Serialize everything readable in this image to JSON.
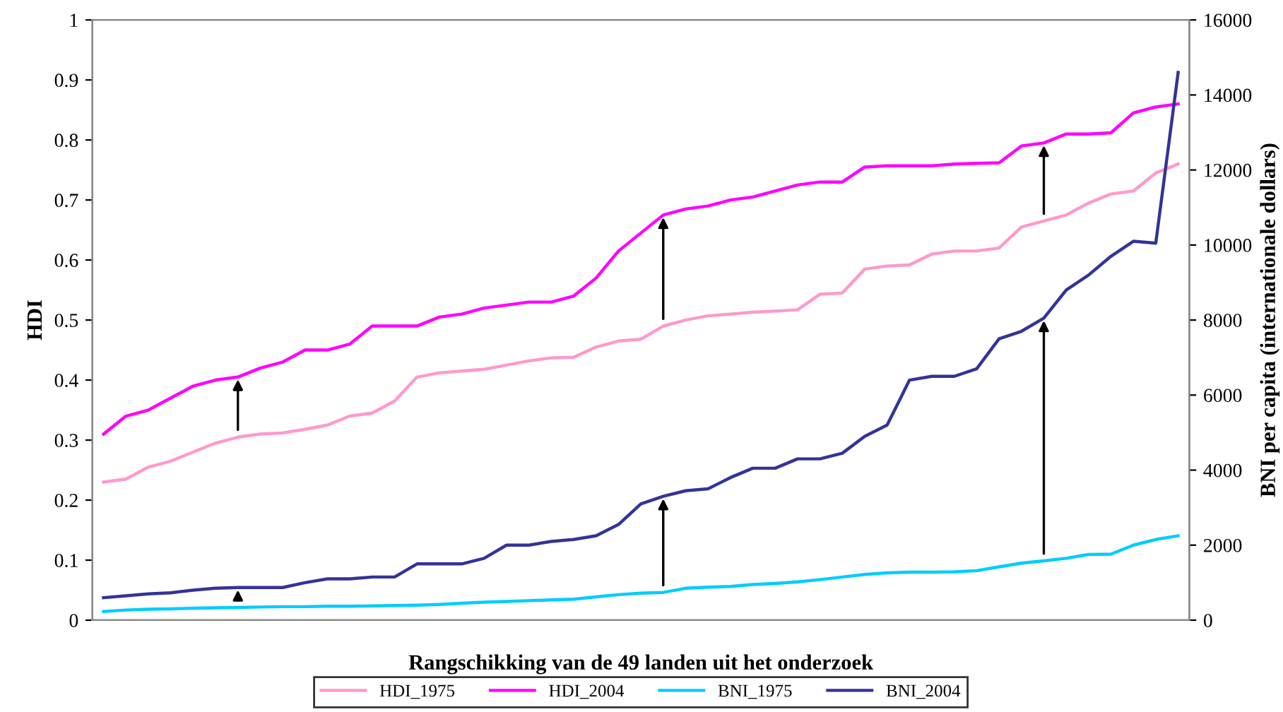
{
  "chart_data": {
    "type": "line",
    "xlabel": "Rangschikking van de 49 landen uit het onderzoek",
    "ylabel": "HDI",
    "y2label": "BNI per capita (internationale dollars)",
    "categories": [
      null,
      null,
      null,
      null,
      null,
      null,
      null,
      null,
      null,
      null,
      null,
      null,
      null,
      null,
      null,
      null,
      null,
      null,
      null,
      null,
      null,
      null,
      null,
      null,
      null,
      null,
      null,
      null,
      null,
      null,
      null,
      null,
      null,
      null,
      null,
      null,
      null,
      null,
      null,
      null,
      null,
      null,
      null,
      null,
      null,
      null,
      null,
      null,
      null
    ],
    "series": [
      {
        "name": "HDI_1975",
        "color": "#ff99cc",
        "values": [
          0.23,
          0.235,
          0.255,
          0.265,
          0.28,
          0.295,
          0.305,
          0.31,
          0.312,
          0.318,
          0.325,
          0.34,
          0.345,
          0.365,
          0.405,
          0.412,
          0.415,
          0.418,
          0.425,
          0.432,
          0.437,
          0.438,
          0.455,
          0.465,
          0.468,
          0.49,
          0.5,
          0.507,
          0.51,
          0.513,
          0.515,
          0.517,
          0.543,
          0.545,
          0.585,
          0.59,
          0.592,
          0.61,
          0.615,
          0.615,
          0.62,
          0.655,
          0.665,
          0.675,
          0.695,
          0.71,
          0.715,
          0.745,
          0.76
        ]
      },
      {
        "name": "HDI_2004",
        "color": "#ff00ff",
        "values": [
          0.31,
          0.34,
          0.35,
          0.37,
          0.39,
          0.4,
          0.405,
          0.42,
          0.43,
          0.45,
          0.45,
          0.46,
          0.49,
          0.49,
          0.49,
          0.505,
          0.51,
          0.52,
          0.525,
          0.53,
          0.53,
          0.54,
          0.57,
          0.615,
          0.645,
          0.675,
          0.685,
          0.69,
          0.7,
          0.705,
          0.715,
          0.725,
          0.73,
          0.73,
          0.755,
          0.757,
          0.757,
          0.757,
          0.76,
          0.761,
          0.762,
          0.79,
          0.795,
          0.81,
          0.81,
          0.812,
          0.845,
          0.855,
          0.86
        ]
      },
      {
        "name": "BNI_1975",
        "color": "#00ccff",
        "axis": "y2",
        "values": [
          230,
          270,
          290,
          300,
          320,
          330,
          340,
          350,
          360,
          360,
          370,
          370,
          380,
          390,
          400,
          420,
          450,
          480,
          500,
          520,
          540,
          560,
          620,
          680,
          720,
          740,
          850,
          880,
          900,
          950,
          980,
          1020,
          1080,
          1150,
          1220,
          1260,
          1280,
          1280,
          1290,
          1320,
          1420,
          1520,
          1580,
          1650,
          1750,
          1760,
          2000,
          2150,
          2250
        ]
      },
      {
        "name": "BNI_2004",
        "color": "#333399",
        "axis": "y2",
        "values": [
          600,
          650,
          700,
          730,
          800,
          850,
          870,
          870,
          870,
          1000,
          1100,
          1100,
          1150,
          1150,
          1500,
          1500,
          1500,
          1650,
          2000,
          2000,
          2100,
          2150,
          2250,
          2550,
          3100,
          3300,
          3450,
          3500,
          3800,
          4050,
          4050,
          4300,
          4300,
          4450,
          4900,
          5200,
          6400,
          6500,
          6500,
          6700,
          7500,
          7700,
          8050,
          8800,
          9200,
          9700,
          10100,
          10050,
          14600
        ]
      }
    ],
    "ylim": [
      0,
      1
    ],
    "yticks": [
      0,
      0.1,
      0.2,
      0.3,
      0.4,
      0.5,
      0.6,
      0.7,
      0.8,
      0.9,
      1
    ],
    "y2lim": [
      0,
      16000
    ],
    "y2ticks": [
      0,
      2000,
      4000,
      6000,
      8000,
      10000,
      12000,
      14000,
      16000
    ],
    "grid": false,
    "legend": "bottom"
  }
}
